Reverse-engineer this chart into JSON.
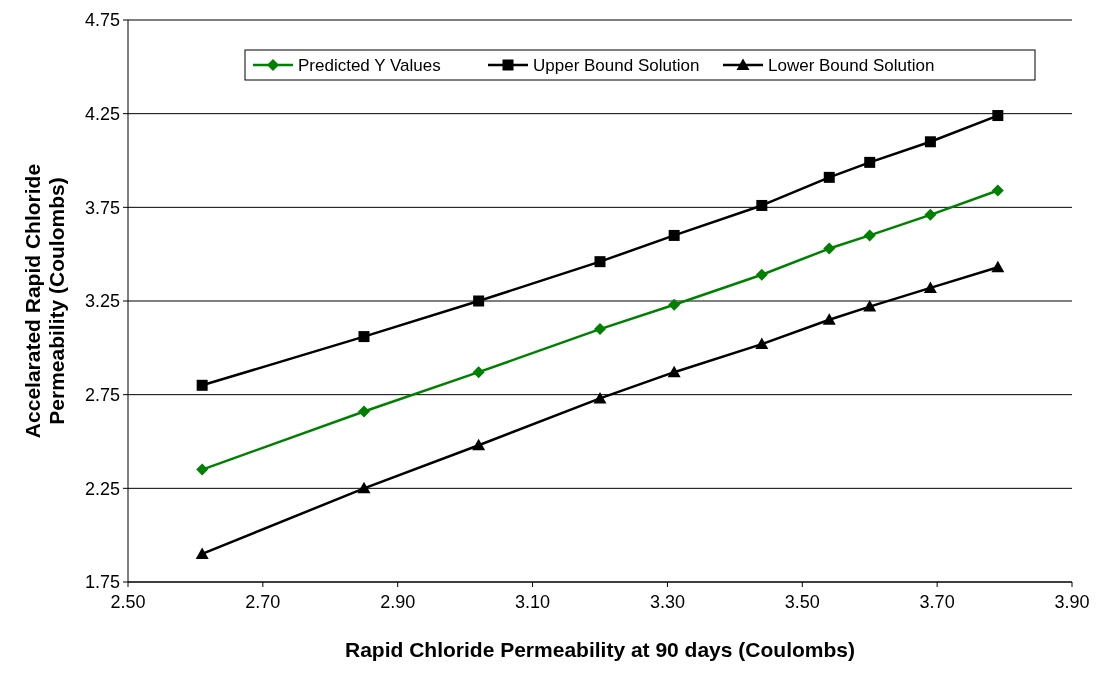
{
  "chart_data": {
    "type": "line",
    "xlabel": "Rapid Chloride Permeability at 90 days (Coulombs)",
    "ylabel": "Accelarated Rapid Chloride Permeability (Coulombs)",
    "x": [
      2.61,
      2.85,
      3.02,
      3.2,
      3.31,
      3.44,
      3.54,
      3.6,
      3.69,
      3.79
    ],
    "series": [
      {
        "name": "Predicted Y Values",
        "color": "#008000",
        "marker": "diamond",
        "values": [
          2.35,
          2.66,
          2.87,
          3.1,
          3.23,
          3.39,
          3.53,
          3.6,
          3.71,
          3.84
        ]
      },
      {
        "name": "Upper Bound Solution",
        "color": "#000000",
        "marker": "square",
        "values": [
          2.8,
          3.06,
          3.25,
          3.46,
          3.6,
          3.76,
          3.91,
          3.99,
          4.1,
          4.24
        ]
      },
      {
        "name": "Lower Bound Solution",
        "color": "#000000",
        "marker": "triangle",
        "values": [
          1.9,
          2.25,
          2.48,
          2.73,
          2.87,
          3.02,
          3.15,
          3.22,
          3.32,
          3.43
        ]
      }
    ],
    "xlim": [
      2.5,
      3.9
    ],
    "xticks": [
      {
        "value": 2.5,
        "label": "2.50"
      },
      {
        "value": 2.7,
        "label": "2.70"
      },
      {
        "value": 2.9,
        "label": "2.90"
      },
      {
        "value": 3.1,
        "label": "3.10"
      },
      {
        "value": 3.3,
        "label": "3.30"
      },
      {
        "value": 3.5,
        "label": "3.50"
      },
      {
        "value": 3.7,
        "label": "3.70"
      },
      {
        "value": 3.9,
        "label": "3.90"
      }
    ],
    "ylim": [
      1.75,
      4.75
    ],
    "yticks": [
      1.75,
      2.25,
      2.75,
      3.25,
      3.75,
      4.25,
      4.75
    ],
    "grid": "y",
    "legend": "top"
  }
}
